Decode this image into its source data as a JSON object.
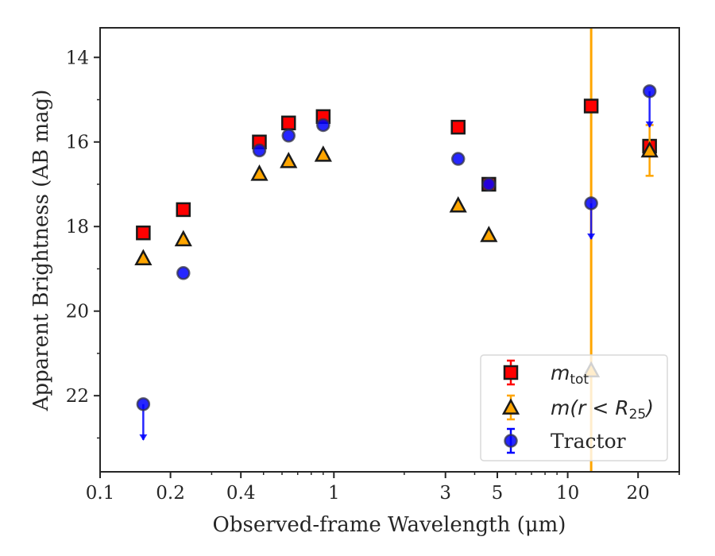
{
  "chart_data": {
    "type": "scatter",
    "title": "",
    "xlabel": "Observed-frame Wavelength (μm)",
    "ylabel": "Apparent Brightness (AB mag)",
    "xscale": "log",
    "xlim": [
      0.1,
      30
    ],
    "ylim": [
      23.8,
      13.3
    ],
    "y_inverted": true,
    "x_ticks": [
      0.1,
      0.2,
      0.4,
      1,
      3,
      5,
      10,
      20
    ],
    "x_tick_labels": [
      "0.1",
      "0.2",
      "0.4",
      "1",
      "3",
      "5",
      "10",
      "20"
    ],
    "y_ticks": [
      14,
      16,
      18,
      20,
      22
    ],
    "y_tick_labels": [
      "14",
      "16",
      "18",
      "20",
      "22"
    ],
    "grid": false,
    "legend_position": "lower-right",
    "vertical_line": {
      "x": 12.6,
      "color": "#ffa500"
    },
    "series": [
      {
        "legend_label": "m_tot",
        "marker": "square",
        "color": "#ff0000",
        "points": [
          {
            "x": 0.153,
            "y": 18.15
          },
          {
            "x": 0.227,
            "y": 17.6
          },
          {
            "x": 0.48,
            "y": 16.0
          },
          {
            "x": 0.64,
            "y": 15.55
          },
          {
            "x": 0.9,
            "y": 15.4
          },
          {
            "x": 3.4,
            "y": 15.65
          },
          {
            "x": 4.6,
            "y": 17.0
          },
          {
            "x": 12.6,
            "y": 15.15
          },
          {
            "x": 22.4,
            "y": 16.1
          }
        ]
      },
      {
        "legend_label": "m(r<R25)",
        "marker": "triangle",
        "color": "#ffa500",
        "points": [
          {
            "x": 0.153,
            "y": 18.75
          },
          {
            "x": 0.227,
            "y": 18.3
          },
          {
            "x": 0.48,
            "y": 16.75
          },
          {
            "x": 0.64,
            "y": 16.45
          },
          {
            "x": 0.9,
            "y": 16.3
          },
          {
            "x": 3.4,
            "y": 17.5
          },
          {
            "x": 4.6,
            "y": 18.2
          },
          {
            "x": 12.6,
            "y": 21.4
          },
          {
            "x": 22.4,
            "y": 16.2,
            "err": 0.6
          }
        ]
      },
      {
        "legend_label": "Tractor",
        "marker": "circle",
        "color": "#0000ff",
        "points": [
          {
            "x": 0.153,
            "y": 22.2,
            "upper_limit": true
          },
          {
            "x": 0.227,
            "y": 19.1
          },
          {
            "x": 0.48,
            "y": 16.2
          },
          {
            "x": 0.64,
            "y": 15.85
          },
          {
            "x": 0.9,
            "y": 15.6
          },
          {
            "x": 3.4,
            "y": 16.4
          },
          {
            "x": 4.6,
            "y": 17.0
          },
          {
            "x": 12.6,
            "y": 17.45,
            "upper_limit": true
          },
          {
            "x": 22.4,
            "y": 14.8,
            "upper_limit": true
          }
        ]
      }
    ]
  }
}
